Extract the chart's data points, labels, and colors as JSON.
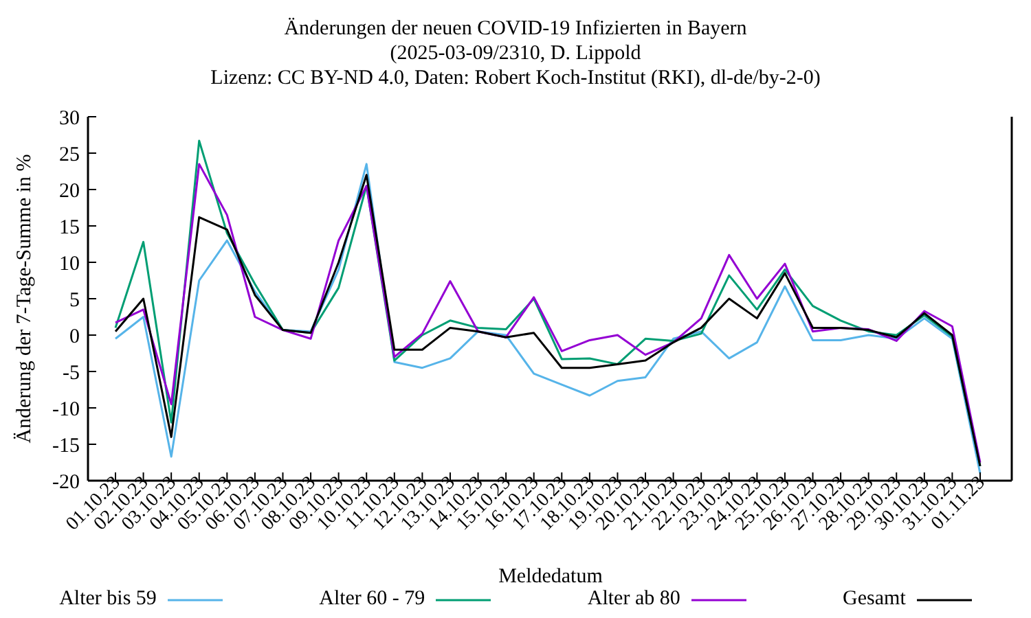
{
  "chart_data": {
    "type": "line",
    "title": "Änderungen der neuen COVID-19 Infizierten in Bayern\n(2025-03-09/2310, D. Lippold\nLizenz: CC BY-ND 4.0, Daten: Robert Koch-Institut (RKI), dl-de/by-2-0)",
    "xlabel": "Meldedatum",
    "ylabel": "Änderung der 7-Tage-Summe in %",
    "categories": [
      "01.10.23",
      "02.10.23",
      "03.10.23",
      "04.10.23",
      "05.10.23",
      "06.10.23",
      "07.10.23",
      "08.10.23",
      "09.10.23",
      "10.10.23",
      "11.10.23",
      "12.10.23",
      "13.10.23",
      "14.10.23",
      "15.10.23",
      "16.10.23",
      "17.10.23",
      "18.10.23",
      "19.10.23",
      "20.10.23",
      "21.10.23",
      "22.10.23",
      "23.10.23",
      "24.10.23",
      "25.10.23",
      "26.10.23",
      "27.10.23",
      "28.10.23",
      "29.10.23",
      "30.10.23",
      "31.10.23",
      "01.11.23"
    ],
    "series": [
      {
        "name": "Alter bis 59",
        "color": "#56b4e9",
        "values": [
          -0.5,
          2.5,
          -16.7,
          7.5,
          13,
          6,
          0.7,
          0.5,
          9,
          23.5,
          -3.7,
          -4.5,
          -3.2,
          0.5,
          0,
          -5.3,
          -6.8,
          -8.3,
          -6.3,
          -5.8,
          -0.5,
          0.5,
          -3.2,
          -1,
          6.7,
          -0.7,
          -0.7,
          0,
          -0.5,
          2.3,
          -0.5,
          -19
        ]
      },
      {
        "name": "Alter 60 - 79",
        "color": "#009e73",
        "values": [
          1,
          12.8,
          -12,
          26.7,
          14,
          7,
          0.7,
          0.3,
          6.5,
          20.5,
          -3.5,
          0,
          2,
          1,
          0.8,
          5,
          -3.3,
          -3.2,
          -4,
          -0.5,
          -0.8,
          0.2,
          8.2,
          3.5,
          9,
          4,
          2,
          0.5,
          0,
          2.7,
          -0.2,
          -18
        ]
      },
      {
        "name": "Alter ab 80",
        "color": "#9400d3",
        "values": [
          1.7,
          3.5,
          -9.5,
          23.5,
          16.5,
          2.5,
          0.7,
          -0.5,
          13,
          20.5,
          -3,
          0.2,
          7.4,
          0.5,
          -0.3,
          5.2,
          -2.2,
          -0.7,
          0,
          -2.7,
          -1,
          2.3,
          11,
          5,
          9.8,
          0.5,
          1,
          0.8,
          -0.8,
          3.3,
          1.2,
          -17.5
        ]
      },
      {
        "name": "Gesamt",
        "color": "#000000",
        "values": [
          0.5,
          5,
          -14,
          16.2,
          14.5,
          5.5,
          0.7,
          0.3,
          10,
          22,
          -2,
          -2,
          1,
          0.5,
          -0.3,
          0.3,
          -4.5,
          -4.5,
          -4,
          -3.5,
          -1,
          1,
          5,
          2.3,
          8.5,
          1,
          1,
          0.7,
          -0.3,
          3,
          0,
          -18
        ]
      }
    ],
    "ylim": [
      -20,
      30
    ],
    "yticks": [
      -20,
      -15,
      -10,
      -5,
      0,
      5,
      10,
      15,
      20,
      25,
      30
    ],
    "grid": false,
    "legend": "bottom",
    "marker": "none",
    "line_style": "solid"
  }
}
